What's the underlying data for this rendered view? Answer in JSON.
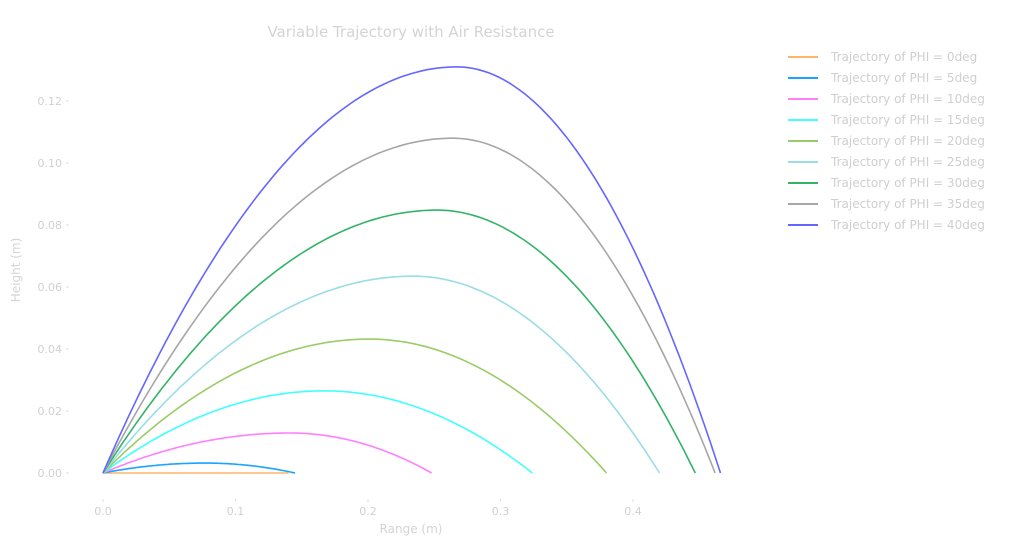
{
  "chart_data": {
    "type": "line",
    "title": "Variable Trajectory with Air Resistance",
    "xlabel": "Range (m)",
    "ylabel": "Height (m)",
    "xlim": [
      0,
      0.47
    ],
    "ylim": [
      0,
      0.135
    ],
    "xticks": [
      0.0,
      0.1,
      0.2,
      0.3,
      0.4
    ],
    "xtick_labels": [
      "0.0",
      "0.1",
      "0.2",
      "0.3",
      "0.4"
    ],
    "yticks": [
      0.0,
      0.02,
      0.04,
      0.06,
      0.08,
      0.1,
      0.12
    ],
    "ytick_labels": [
      "0.00",
      "0.02",
      "0.04",
      "0.06",
      "0.08",
      "0.10",
      "0.12"
    ],
    "grid": false,
    "legend_position": "outside-right",
    "series": [
      {
        "name": "Trajectory of PHI = 0deg",
        "color": "#ffb36b",
        "range": 0.14,
        "peak_x": 0.07,
        "max_height": 0.0
      },
      {
        "name": "Trajectory of PHI = 5deg",
        "color": "#1aa3ff",
        "range": 0.145,
        "peak_x": 0.077,
        "max_height": 0.0032
      },
      {
        "name": "Trajectory of PHI = 10deg",
        "color": "#ff7fff",
        "range": 0.248,
        "peak_x": 0.141,
        "max_height": 0.0129
      },
      {
        "name": "Trajectory of PHI = 15deg",
        "color": "#40ffff",
        "range": 0.324,
        "peak_x": 0.167,
        "max_height": 0.0265
      },
      {
        "name": "Trajectory of PHI = 20deg",
        "color": "#99cc66",
        "range": 0.38,
        "peak_x": 0.201,
        "max_height": 0.0432
      },
      {
        "name": "Trajectory of PHI = 25deg",
        "color": "#99dde6",
        "range": 0.42,
        "peak_x": 0.234,
        "max_height": 0.0635
      },
      {
        "name": "Trajectory of PHI = 30deg",
        "color": "#33b366",
        "range": 0.447,
        "peak_x": 0.252,
        "max_height": 0.0848
      },
      {
        "name": "Trajectory of PHI = 35deg",
        "color": "#a6a6a6",
        "range": 0.462,
        "peak_x": 0.264,
        "max_height": 0.108
      },
      {
        "name": "Trajectory of PHI = 40deg",
        "color": "#6666ff",
        "range": 0.466,
        "peak_x": 0.267,
        "max_height": 0.131
      }
    ]
  }
}
